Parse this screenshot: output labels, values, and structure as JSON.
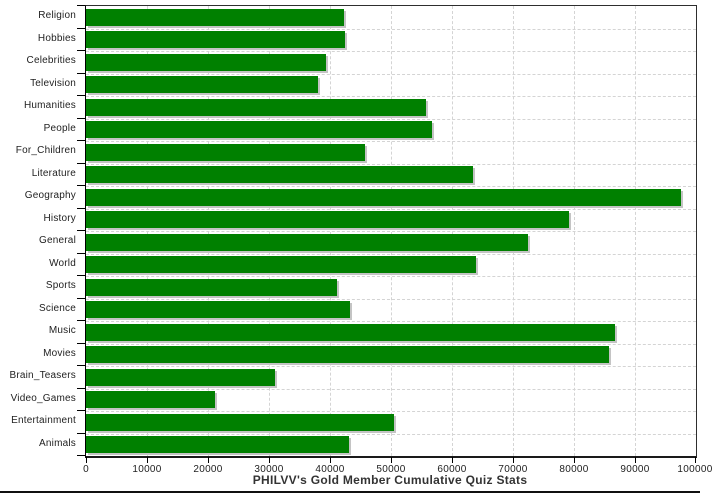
{
  "chart_data": {
    "type": "bar",
    "orientation": "horizontal",
    "title": "PHILVV's Gold Member Cumulative Quiz Stats",
    "categories": [
      "Religion",
      "Hobbies",
      "Celebrities",
      "Television",
      "Humanities",
      "People",
      "For_Children",
      "Literature",
      "Geography",
      "History",
      "General",
      "World",
      "Sports",
      "Science",
      "Music",
      "Movies",
      "Brain_Teasers",
      "Video_Games",
      "Entertainment",
      "Animals"
    ],
    "values": [
      42300,
      42400,
      39300,
      38000,
      55700,
      56700,
      45700,
      63500,
      97500,
      79200,
      72500,
      64000,
      41100,
      43200,
      86800,
      85700,
      31000,
      21100,
      50500,
      43100
    ],
    "xlim": [
      0,
      100000
    ],
    "x_tick_step": 10000,
    "x_tick_labels": [
      "0",
      "10000",
      "20000",
      "30000",
      "40000",
      "50000",
      "60000",
      "70000",
      "80000",
      "90000",
      "100000"
    ],
    "grid": "dashed",
    "legend": "none",
    "bar_color": "#008000",
    "bar_shadow_color": "#c4c4c4",
    "grid_color": "#d4d4d4",
    "axis_color": "#000000",
    "text_color": "#222222"
  }
}
